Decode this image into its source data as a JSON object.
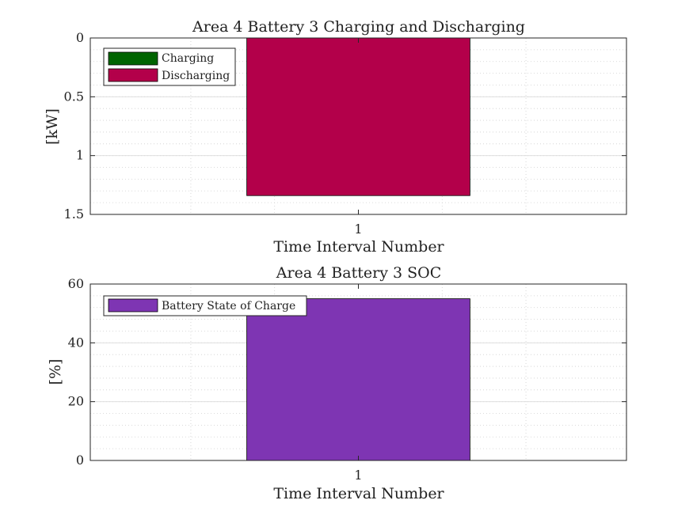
{
  "chart_data": [
    {
      "type": "bar",
      "title": "Area 4 Battery 3 Charging and Discharging",
      "xlabel": "Time Interval Number",
      "ylabel": "[kW]",
      "categories": [
        "1"
      ],
      "ylim": [
        0,
        1.5
      ],
      "y_reversed": true,
      "yticks": [
        "0",
        "0.5",
        "1",
        "1.5"
      ],
      "grid": true,
      "legend_position": "top-left",
      "series": [
        {
          "name": "Charging",
          "values": [
            0
          ],
          "color": "#006400"
        },
        {
          "name": "Discharging",
          "values": [
            1.34
          ],
          "color": "#b3004a"
        }
      ]
    },
    {
      "type": "bar",
      "title": "Area 4 Battery 3 SOC",
      "xlabel": "Time Interval Number",
      "ylabel": "[%]",
      "categories": [
        "1"
      ],
      "ylim": [
        0,
        60
      ],
      "y_reversed": false,
      "yticks": [
        "0",
        "20",
        "40",
        "60"
      ],
      "grid": true,
      "legend_position": "top-left",
      "series": [
        {
          "name": "Battery State of Charge",
          "values": [
            55
          ],
          "color": "#7e35b3"
        }
      ]
    }
  ]
}
